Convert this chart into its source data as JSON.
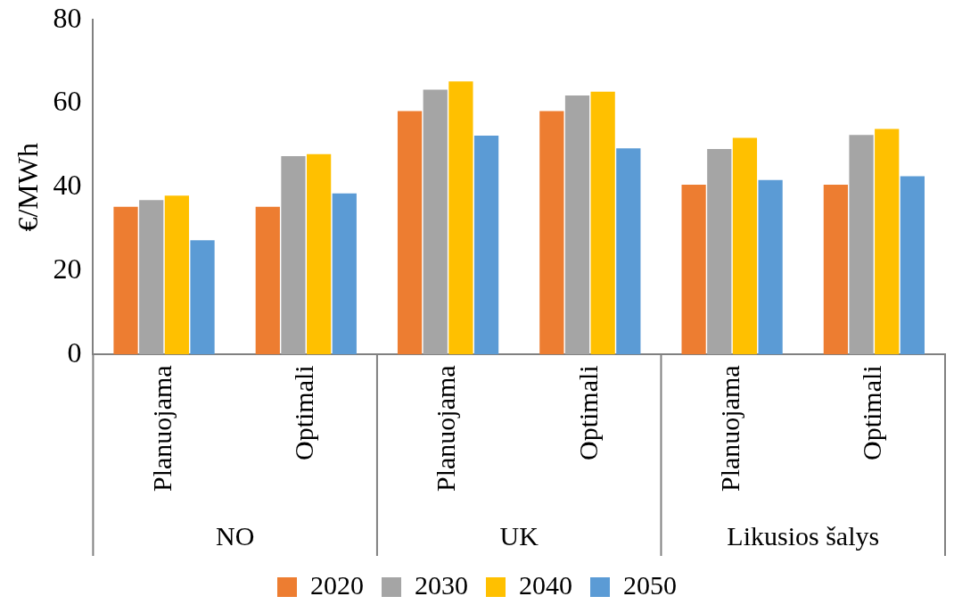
{
  "chart_data": {
    "type": "bar",
    "ylabel": "€/MWh",
    "categories": [
      "Planuojama",
      "Optimali",
      "Planuojama",
      "Optimali",
      "Planuojama",
      "Optimali"
    ],
    "annotations": [
      "NO",
      "UK",
      "Likusios šalys"
    ],
    "series": [
      {
        "name": "2020",
        "color": "#ed7d31",
        "values": [
          35.3,
          35.3,
          58.2,
          58.2,
          40.6,
          40.6
        ]
      },
      {
        "name": "2030",
        "color": "#a5a5a5",
        "values": [
          36.9,
          47.4,
          63.3,
          61.9,
          49.1,
          52.5
        ]
      },
      {
        "name": "2040",
        "color": "#ffc000",
        "values": [
          38,
          47.9,
          65.3,
          62.8,
          51.8,
          53.9
        ]
      },
      {
        "name": "2050",
        "color": "#5b9bd5",
        "values": [
          27.3,
          38.5,
          52.3,
          49.3,
          41.7,
          42.6
        ]
      }
    ],
    "ylim": [
      0,
      80
    ],
    "yticks": [
      0,
      20,
      40,
      60,
      80
    ],
    "grid": false,
    "legend": "bottom"
  }
}
